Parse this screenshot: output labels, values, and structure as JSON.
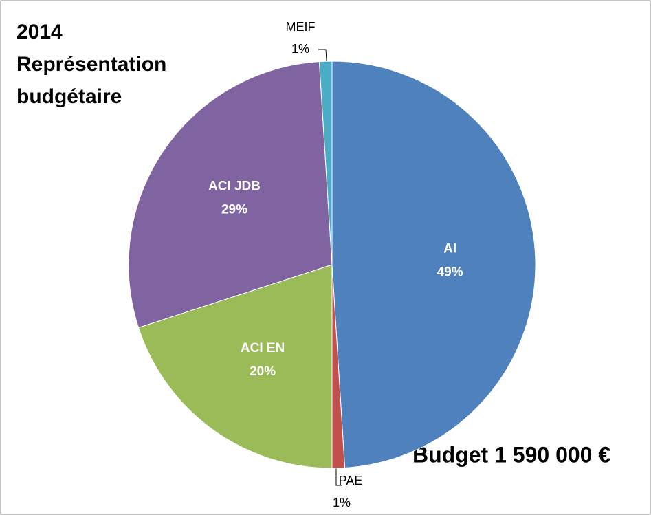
{
  "chart_data": {
    "type": "pie",
    "title": [
      "2014",
      "Représentation",
      "budgétaire"
    ],
    "annotation": "Budget 1 590 000 €",
    "categories": [
      "AI",
      "PAE",
      "ACI EN",
      "ACI JDB",
      "MEIF"
    ],
    "values": [
      49,
      1,
      20,
      29,
      1
    ],
    "value_labels": [
      "49%",
      "1%",
      "20%",
      "29%",
      "1%"
    ],
    "colors": [
      "#4f81bd",
      "#c0504d",
      "#9bbb59",
      "#8064a2",
      "#4bacc6"
    ]
  }
}
